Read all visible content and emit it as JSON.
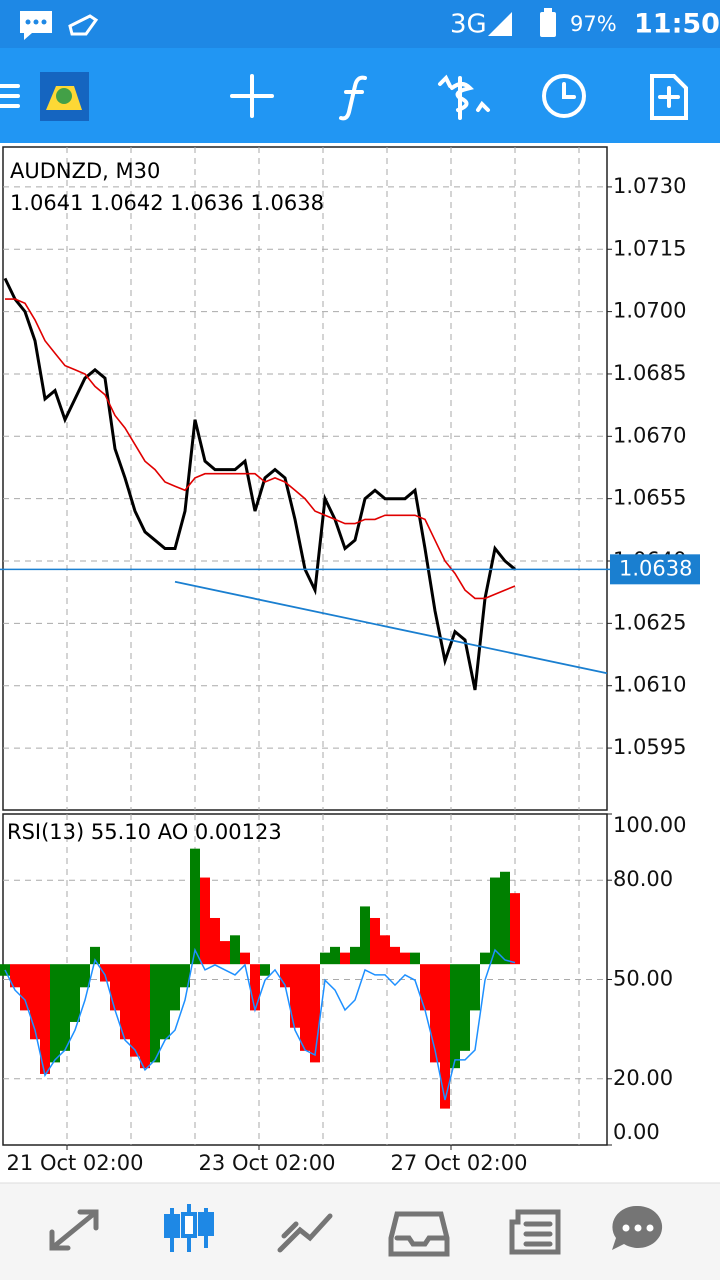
{
  "status_bar": {
    "network": "3G",
    "battery": "97%",
    "time": "11:50"
  },
  "chart_data": [
    {
      "type": "line",
      "title": "AUDNZD, M30",
      "subtitle": "1.0641 1.0642 1.0636 1.0638",
      "x": [
        0,
        1,
        2,
        3,
        4,
        5,
        6,
        7,
        8,
        9,
        10,
        11,
        12,
        13,
        14,
        15,
        16,
        17,
        18,
        19,
        20,
        21,
        22,
        23,
        24,
        25,
        26,
        27,
        28,
        29,
        30,
        31,
        32,
        33,
        34,
        35,
        36,
        37,
        38,
        39,
        40,
        41,
        42,
        43,
        44,
        45,
        46,
        47,
        48,
        49,
        50,
        51
      ],
      "series": [
        {
          "color": "#000000",
          "values": [
            1.0708,
            1.0703,
            1.07,
            1.0693,
            1.0679,
            1.0681,
            1.0674,
            1.0679,
            1.0684,
            1.0686,
            1.0684,
            1.0667,
            1.066,
            1.0652,
            1.0647,
            1.0645,
            1.0643,
            1.0643,
            1.0652,
            1.0674,
            1.0664,
            1.0662,
            1.0662,
            1.0662,
            1.0664,
            1.0652,
            1.066,
            1.0662,
            1.066,
            1.065,
            1.0638,
            1.0633,
            1.0655,
            1.065,
            1.0643,
            1.0645,
            1.0655,
            1.0657,
            1.0655,
            1.0655,
            1.0655,
            1.0657,
            1.0643,
            1.0628,
            1.0616,
            1.0623,
            1.0621,
            1.0609,
            1.0631,
            1.0643,
            1.064,
            1.0638
          ]
        },
        {
          "color": "#e00000",
          "values": [
            1.0703,
            1.0703,
            1.0702,
            1.0698,
            1.0693,
            1.069,
            1.0687,
            1.0686,
            1.0685,
            1.0682,
            1.068,
            1.0675,
            1.0672,
            1.0668,
            1.0664,
            1.0662,
            1.0659,
            1.0658,
            1.0657,
            1.066,
            1.0661,
            1.0661,
            1.0661,
            1.0661,
            1.0661,
            1.0661,
            1.0659,
            1.066,
            1.0659,
            1.0657,
            1.0655,
            1.0652,
            1.0651,
            1.065,
            1.0649,
            1.0649,
            1.065,
            1.065,
            1.0651,
            1.0651,
            1.0651,
            1.0651,
            1.065,
            1.0645,
            1.064,
            1.0637,
            1.0633,
            1.0631,
            1.0631,
            1.0632,
            1.0633,
            1.0634
          ]
        }
      ],
      "trendline": {
        "color": "#1a7fd0",
        "x": [
          17,
          60.2
        ],
        "values": [
          1.0635,
          1.0613
        ]
      },
      "last_price": {
        "value": 1.0638,
        "label": "1.0638",
        "color": "#1a7fd0"
      },
      "xlim": [
        -0.2,
        60.2
      ],
      "ylim": [
        1.05801,
        1.07396
      ],
      "yticks": [
        {
          "value": 1.073,
          "label": "1.0730"
        },
        {
          "value": 1.0715,
          "label": "1.0715"
        },
        {
          "value": 1.07,
          "label": "1.0700"
        },
        {
          "value": 1.0685,
          "label": "1.0685"
        },
        {
          "value": 1.067,
          "label": "1.0670"
        },
        {
          "value": 1.0655,
          "label": "1.0655"
        },
        {
          "value": 1.064,
          "label": "1.0640"
        },
        {
          "value": 1.0625,
          "label": "1.0625"
        },
        {
          "value": 1.061,
          "label": "1.0610"
        },
        {
          "value": 1.0595,
          "label": "1.0595"
        }
      ],
      "xgrid": [
        6.2,
        12.6,
        19,
        25.4,
        31.8,
        38.2,
        44.6,
        51,
        57.4
      ],
      "grid": true
    },
    {
      "type": "combo",
      "title": "RSI(13) 55.10 AO 0.00123",
      "x": [
        0,
        1,
        2,
        3,
        4,
        5,
        6,
        7,
        8,
        9,
        10,
        11,
        12,
        13,
        14,
        15,
        16,
        17,
        18,
        19,
        20,
        21,
        22,
        23,
        24,
        25,
        26,
        27,
        28,
        29,
        30,
        31,
        32,
        33,
        34,
        35,
        36,
        37,
        38,
        39,
        40,
        41,
        42,
        43,
        44,
        45,
        46,
        47,
        48,
        49,
        50,
        51
      ],
      "series": [
        {
          "color": "#1e90ff",
          "values": [
            52.9,
            46.8,
            43.8,
            34.7,
            21.1,
            25.7,
            28.7,
            34.7,
            43.8,
            55.9,
            51.4,
            40.8,
            31.7,
            28.7,
            22.7,
            25.7,
            31.7,
            34.7,
            43.8,
            58.9,
            52.9,
            54.4,
            52.9,
            51.4,
            54.4,
            40.8,
            49.8,
            52.9,
            48.3,
            34.7,
            28.7,
            27.2,
            49.8,
            46.8,
            40.8,
            43.8,
            52.9,
            51.4,
            51.4,
            48.3,
            51.4,
            49.8,
            40.8,
            28.7,
            13.6,
            25.7,
            25.7,
            28.7,
            49.8,
            58.9,
            55.9,
            55.1
          ]
        },
        {
          "axis": "y2",
          "up_color": "#008000",
          "down_color": "#ff0000",
          "values": [
            -0.0002,
            -0.0004,
            -0.0008,
            -0.0013,
            -0.0019,
            -0.0017,
            -0.0015,
            -0.001,
            -0.0004,
            0.0003,
            -0.0003,
            -0.0008,
            -0.0013,
            -0.0016,
            -0.0018,
            -0.0017,
            -0.0013,
            -0.0008,
            -0.0004,
            0.002,
            0.0015,
            0.0008,
            0.0004,
            0.0005,
            0.0002,
            -0.0008,
            -0.0002,
            0,
            -0.0004,
            -0.0011,
            -0.0015,
            -0.0017,
            0.0002,
            0.0003,
            0.0002,
            0.0003,
            0.001,
            0.0008,
            0.0005,
            0.0003,
            0.0002,
            0.0002,
            -0.0008,
            -0.0017,
            -0.0025,
            -0.0018,
            -0.0015,
            -0.0008,
            0.0002,
            0.0015,
            0.0016,
            0.00123
          ]
        }
      ],
      "xlim": [
        -0.2,
        60.2
      ],
      "ylim": [
        0,
        100
      ],
      "y2lim": [
        -0.00313,
        0.0026
      ],
      "yticks": [
        {
          "value": 100,
          "label": "100.00"
        },
        {
          "value": 80,
          "label": "80.00"
        },
        {
          "value": 50,
          "label": "50.00"
        },
        {
          "value": 20,
          "label": "20.00"
        },
        {
          "value": 0,
          "label": "0.00"
        }
      ],
      "xticks": [
        {
          "value": 6.2,
          "label": "21 Oct 02:00"
        },
        {
          "value": 25.4,
          "label": "23 Oct 02:00"
        },
        {
          "value": 44.6,
          "label": "27 Oct 02:00"
        }
      ],
      "xgrid": [
        6.2,
        12.6,
        19,
        25.4,
        31.8,
        38.2,
        44.6,
        51,
        57.4
      ],
      "grid": true
    }
  ]
}
